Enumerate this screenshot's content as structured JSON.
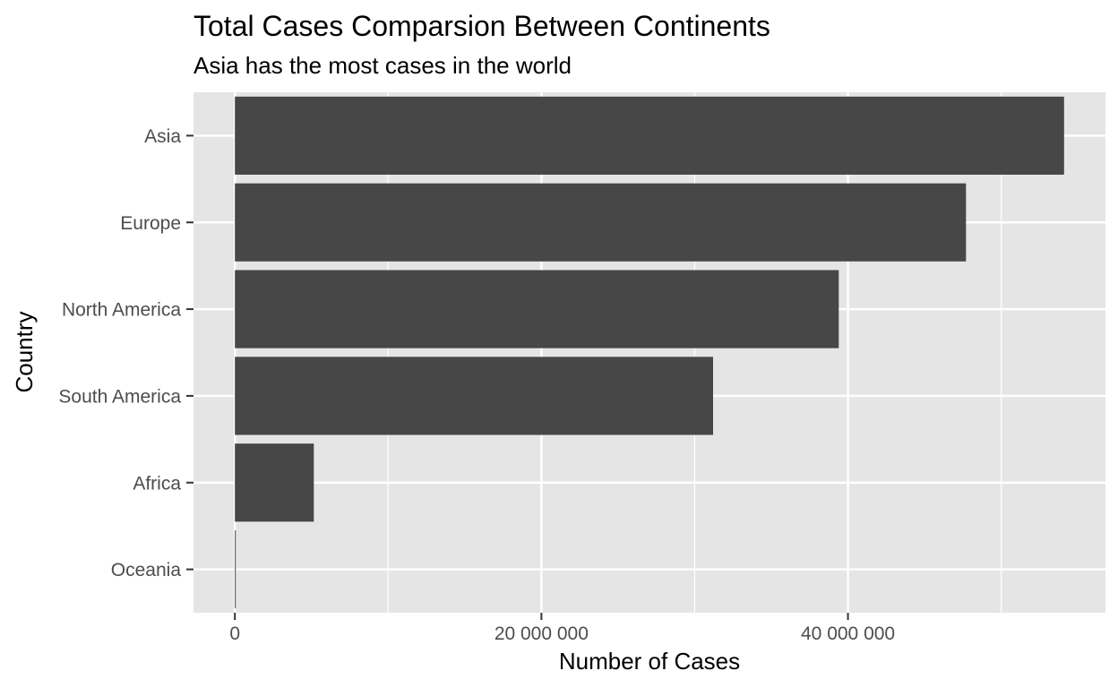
{
  "chart_data": {
    "type": "bar",
    "orientation": "horizontal",
    "title": "Total Cases Comparsion Between Continents",
    "subtitle": "Asia has the most cases in the world",
    "xlabel": "Number of Cases",
    "ylabel": "Country",
    "categories": [
      "Asia",
      "Europe",
      "North America",
      "South America",
      "Africa",
      "Oceania"
    ],
    "values": [
      54100000,
      47700000,
      39400000,
      31200000,
      5150000,
      60000
    ],
    "xlim": [
      -2700000,
      56800000
    ],
    "x_ticks": [
      0,
      20000000,
      40000000
    ],
    "x_tick_labels": [
      "0",
      "20 000 000",
      "40 000 000"
    ],
    "x_minor_ticks": [
      10000000,
      30000000,
      50000000
    ],
    "bar_color": "#474747",
    "panel_background": "#e5e5e5",
    "grid": true,
    "grid_color": "#ffffff",
    "legend": "none"
  }
}
